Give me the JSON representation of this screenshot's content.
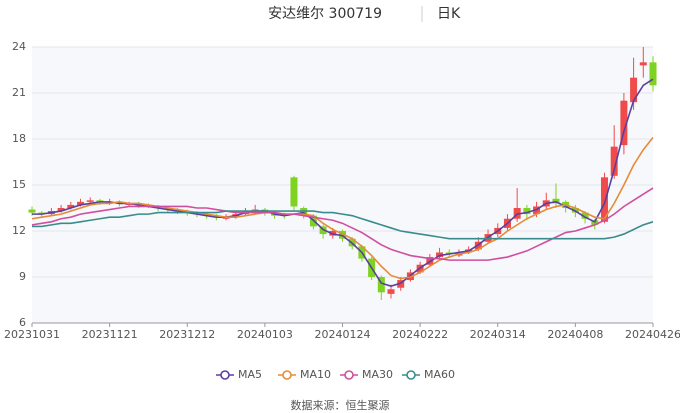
{
  "chart_data": {
    "type": "candlestick",
    "title": "安达维尔 300719",
    "subtitle": "日K",
    "categories": [
      "20231031",
      null,
      null,
      null,
      null,
      null,
      null,
      null,
      "20231121",
      null,
      null,
      null,
      null,
      null,
      null,
      null,
      "20231212",
      null,
      null,
      null,
      null,
      null,
      null,
      null,
      "20240103",
      null,
      null,
      null,
      null,
      null,
      null,
      null,
      "20240124",
      null,
      null,
      null,
      null,
      null,
      null,
      null,
      "20240222",
      null,
      null,
      null,
      null,
      null,
      null,
      null,
      "20240314",
      null,
      null,
      null,
      null,
      null,
      null,
      null,
      "20240408",
      null,
      null,
      null,
      null,
      null,
      null,
      null,
      "20240426"
    ],
    "candles": [
      [
        13.4,
        13.2,
        13.0,
        13.6
      ],
      [
        13.2,
        13.1,
        12.9,
        13.3
      ],
      [
        13.1,
        13.3,
        13.0,
        13.5
      ],
      [
        13.3,
        13.5,
        13.2,
        13.7
      ],
      [
        13.5,
        13.7,
        13.4,
        13.9
      ],
      [
        13.7,
        13.9,
        13.6,
        14.1
      ],
      [
        13.9,
        14.0,
        13.8,
        14.2
      ],
      [
        14.0,
        13.9,
        13.7,
        14.1
      ],
      [
        13.8,
        13.9,
        13.7,
        14.1
      ],
      [
        13.9,
        13.8,
        13.6,
        14.0
      ],
      [
        13.7,
        13.8,
        13.6,
        13.9
      ],
      [
        13.8,
        13.7,
        13.5,
        13.9
      ],
      [
        13.7,
        13.6,
        13.5,
        13.8
      ],
      [
        13.6,
        13.5,
        13.3,
        13.7
      ],
      [
        13.5,
        13.4,
        13.2,
        13.6
      ],
      [
        13.4,
        13.3,
        13.1,
        13.5
      ],
      [
        13.3,
        13.2,
        13.0,
        13.4
      ],
      [
        13.2,
        13.1,
        12.9,
        13.3
      ],
      [
        13.1,
        13.0,
        12.8,
        13.2
      ],
      [
        13.0,
        12.9,
        12.7,
        13.1
      ],
      [
        12.8,
        12.9,
        12.7,
        13.1
      ],
      [
        12.9,
        13.1,
        12.8,
        13.3
      ],
      [
        13.1,
        13.3,
        13.0,
        13.5
      ],
      [
        13.3,
        13.4,
        13.1,
        13.7
      ],
      [
        13.4,
        13.2,
        13.0,
        13.5
      ],
      [
        13.2,
        13.0,
        12.8,
        13.3
      ],
      [
        13.1,
        13.0,
        12.8,
        13.2
      ],
      [
        15.5,
        13.6,
        13.3,
        15.6
      ],
      [
        13.5,
        13.0,
        12.8,
        13.6
      ],
      [
        13.0,
        12.3,
        12.1,
        13.1
      ],
      [
        12.3,
        11.8,
        11.5,
        12.4
      ],
      [
        11.7,
        12.0,
        11.5,
        12.2
      ],
      [
        12.0,
        11.5,
        11.3,
        12.1
      ],
      [
        11.5,
        11.0,
        10.8,
        11.6
      ],
      [
        11.0,
        10.2,
        10.0,
        11.1
      ],
      [
        10.2,
        9.0,
        8.8,
        10.3
      ],
      [
        9.0,
        8.0,
        7.5,
        9.1
      ],
      [
        7.9,
        8.2,
        7.6,
        8.5
      ],
      [
        8.3,
        8.8,
        8.1,
        9.0
      ],
      [
        8.8,
        9.3,
        8.7,
        9.5
      ],
      [
        9.3,
        9.8,
        9.2,
        10.0
      ],
      [
        9.8,
        10.3,
        9.7,
        10.5
      ],
      [
        10.3,
        10.6,
        10.1,
        10.9
      ],
      [
        10.6,
        10.5,
        10.3,
        10.8
      ],
      [
        10.4,
        10.6,
        10.3,
        10.8
      ],
      [
        10.6,
        10.8,
        10.5,
        11.0
      ],
      [
        10.8,
        11.3,
        10.7,
        11.6
      ],
      [
        11.3,
        11.8,
        11.2,
        12.1
      ],
      [
        11.8,
        12.2,
        11.6,
        12.5
      ],
      [
        12.2,
        12.8,
        12.0,
        13.1
      ],
      [
        12.8,
        13.5,
        12.6,
        14.8
      ],
      [
        13.5,
        13.1,
        12.7,
        13.7
      ],
      [
        13.1,
        13.6,
        12.9,
        13.9
      ],
      [
        13.6,
        14.0,
        13.4,
        14.5
      ],
      [
        14.1,
        13.8,
        13.5,
        15.1
      ],
      [
        13.9,
        13.5,
        13.2,
        14.0
      ],
      [
        13.5,
        13.2,
        12.9,
        13.7
      ],
      [
        13.2,
        12.8,
        12.5,
        13.3
      ],
      [
        12.7,
        12.4,
        12.1,
        12.8
      ],
      [
        12.6,
        15.5,
        12.5,
        15.8
      ],
      [
        15.6,
        17.5,
        15.4,
        18.9
      ],
      [
        17.6,
        20.5,
        17.0,
        21.0
      ],
      [
        20.4,
        22.0,
        19.9,
        23.3
      ],
      [
        22.8,
        23.0,
        22.0,
        24.0
      ],
      [
        23.0,
        21.5,
        21.1,
        23.4
      ]
    ],
    "up_color": "#f04b4b",
    "down_color": "#7ed321",
    "series": [
      {
        "name": "MA5",
        "color": "#5b3fa0",
        "values": [
          13.1,
          13.1,
          13.2,
          13.3,
          13.5,
          13.7,
          13.8,
          13.9,
          13.9,
          13.8,
          13.8,
          13.7,
          13.6,
          13.5,
          13.4,
          13.3,
          13.2,
          13.1,
          13.0,
          12.9,
          12.9,
          13.0,
          13.2,
          13.3,
          13.3,
          13.1,
          13.0,
          13.1,
          13.2,
          12.7,
          12.1,
          11.8,
          11.7,
          11.2,
          10.6,
          9.6,
          8.6,
          8.4,
          8.6,
          9.1,
          9.6,
          10.0,
          10.4,
          10.5,
          10.6,
          10.7,
          11.1,
          11.6,
          12.0,
          12.5,
          13.1,
          13.2,
          13.4,
          13.8,
          13.9,
          13.6,
          13.3,
          12.9,
          12.6,
          13.8,
          16.0,
          18.5,
          20.5,
          21.5,
          21.9
        ]
      },
      {
        "name": "MA10",
        "color": "#e58c3a",
        "values": [
          12.8,
          12.9,
          13.0,
          13.1,
          13.3,
          13.5,
          13.7,
          13.8,
          13.8,
          13.9,
          13.8,
          13.8,
          13.7,
          13.6,
          13.5,
          13.4,
          13.3,
          13.2,
          13.1,
          13.0,
          12.9,
          12.9,
          13.0,
          13.1,
          13.2,
          13.2,
          13.1,
          13.1,
          13.1,
          13.0,
          12.5,
          12.1,
          11.8,
          11.5,
          11.0,
          10.4,
          9.7,
          9.1,
          8.9,
          9.0,
          9.3,
          9.7,
          10.1,
          10.3,
          10.5,
          10.6,
          10.8,
          11.2,
          11.5,
          12.0,
          12.4,
          12.8,
          13.1,
          13.4,
          13.6,
          13.7,
          13.5,
          13.2,
          12.9,
          12.8,
          13.8,
          15.0,
          16.3,
          17.3,
          18.1
        ]
      },
      {
        "name": "MA30",
        "color": "#d04ea0",
        "values": [
          12.4,
          12.5,
          12.6,
          12.8,
          12.9,
          13.1,
          13.2,
          13.3,
          13.4,
          13.5,
          13.6,
          13.6,
          13.6,
          13.6,
          13.6,
          13.6,
          13.6,
          13.5,
          13.5,
          13.4,
          13.3,
          13.2,
          13.2,
          13.2,
          13.2,
          13.2,
          13.1,
          13.1,
          13.0,
          12.9,
          12.8,
          12.7,
          12.5,
          12.2,
          11.9,
          11.5,
          11.1,
          10.8,
          10.6,
          10.4,
          10.3,
          10.2,
          10.2,
          10.1,
          10.1,
          10.1,
          10.1,
          10.1,
          10.2,
          10.3,
          10.5,
          10.7,
          11.0,
          11.3,
          11.6,
          11.9,
          12.0,
          12.2,
          12.4,
          12.7,
          13.1,
          13.6,
          14.0,
          14.4,
          14.8
        ]
      },
      {
        "name": "MA60",
        "color": "#3a8c8c",
        "values": [
          12.3,
          12.3,
          12.4,
          12.5,
          12.5,
          12.6,
          12.7,
          12.8,
          12.9,
          12.9,
          13.0,
          13.1,
          13.1,
          13.2,
          13.2,
          13.2,
          13.2,
          13.2,
          13.2,
          13.2,
          13.3,
          13.3,
          13.3,
          13.3,
          13.3,
          13.3,
          13.3,
          13.3,
          13.3,
          13.3,
          13.2,
          13.2,
          13.1,
          13.0,
          12.8,
          12.6,
          12.4,
          12.2,
          12.0,
          11.9,
          11.8,
          11.7,
          11.6,
          11.5,
          11.5,
          11.5,
          11.5,
          11.5,
          11.5,
          11.5,
          11.5,
          11.5,
          11.5,
          11.5,
          11.5,
          11.5,
          11.5,
          11.5,
          11.5,
          11.5,
          11.6,
          11.8,
          12.1,
          12.4,
          12.6
        ]
      }
    ],
    "ylim": [
      6,
      24
    ],
    "yticks": [
      6,
      9,
      12,
      15,
      18,
      21,
      24
    ],
    "grid": true,
    "source": "数据来源：恒生聚源"
  }
}
